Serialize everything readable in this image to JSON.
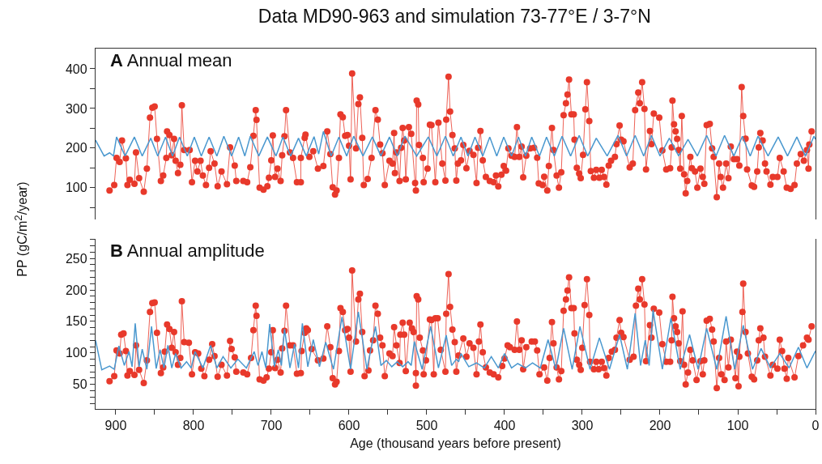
{
  "chart_data": [
    {
      "type": "line",
      "title": "Data MD90-963 and simulation 73-77°E / 3-7°N",
      "ylabel": "PP (gC/m$^{2}$/year)",
      "annotations": [
        "A Annual mean"
      ],
      "xlim": [
        926,
        0
      ],
      "ylim": [
        20,
        451
      ],
      "yticks": [
        {
          "value": 50,
          "label": null
        },
        100,
        {
          "value": 150,
          "label": null
        },
        200,
        {
          "value": 250,
          "label": null
        },
        300,
        {
          "value": 350,
          "label": null
        },
        400
      ],
      "tick_labels": "y",
      "series": [
        {
          "color": "#e8392b",
          "marker": "circle",
          "x": [
            908,
            902,
            899,
            895,
            892,
            887,
            885,
            882,
            876,
            874,
            870,
            864,
            860,
            856,
            853,
            850,
            847,
            842,
            839,
            835,
            834,
            831,
            828,
            825,
            823,
            820,
            817,
            815,
            812,
            805,
            802,
            798,
            795,
            791,
            788,
            784,
            780,
            778,
            773,
            769,
            764,
            757,
            753,
            747,
            745,
            736,
            731,
            727,
            723,
            720,
            719,
            715,
            710,
            705,
            703,
            700,
            698,
            695,
            692,
            688,
            686,
            683,
            681,
            676,
            672,
            667,
            662,
            662,
            657,
            656,
            651,
            646,
            640,
            633,
            628,
            624,
            621,
            618,
            616,
            613,
            611,
            608,
            605,
            602,
            600,
            598,
            596,
            591,
            588,
            586,
            583,
            581,
            576,
            571,
            566,
            563,
            560,
            557,
            554,
            548,
            544,
            542,
            541,
            539,
            535,
            533,
            531,
            529,
            527,
            523,
            520,
            515,
            514,
            513,
            511,
            510,
            505,
            504,
            499,
            496,
            494,
            489,
            485,
            480,
            476,
            475,
            472,
            470,
            467,
            464,
            462,
            460,
            456,
            453,
            449,
            445,
            440,
            436,
            434,
            431,
            428,
            424,
            419,
            414,
            411,
            408,
            404,
            401,
            398,
            395,
            391,
            387,
            384,
            381,
            378,
            376,
            372,
            367,
            362,
            358,
            356,
            351,
            349,
            345,
            343,
            339,
            337,
            333,
            330,
            327,
            324,
            321,
            319,
            317,
            314,
            311,
            310,
            307,
            304,
            302,
            299,
            296,
            294,
            291,
            289,
            285,
            282,
            278,
            275,
            272,
            269,
            266,
            263,
            258,
            256,
            252,
            250,
            247,
            239,
            235,
            232,
            228,
            226,
            223,
            220,
            218,
            213,
            211,
            208,
            201,
            197,
            192,
            187,
            185,
            184,
            182,
            180,
            178,
            176,
            174,
            172,
            169,
            167,
            165,
            161,
            159,
            155,
            152,
            148,
            145,
            143,
            140,
            136,
            133,
            131,
            127,
            124,
            122,
            119,
            115,
            112,
            109,
            105,
            101,
            98,
            95,
            93,
            90,
            88,
            82,
            79,
            75,
            73,
            71,
            68,
            65,
            63,
            58,
            55,
            49,
            46,
            41,
            37,
            32,
            27,
            24,
            19,
            15,
            11,
            9,
            8,
            5
          ],
          "values": [
            93,
            107,
            175,
            165,
            219,
            174,
            107,
            120,
            110,
            189,
            124,
            90,
            148,
            277,
            302,
            305,
            223,
            117,
            131,
            175,
            242,
            233,
            182,
            223,
            168,
            137,
            158,
            308,
            195,
            195,
            114,
            168,
            141,
            168,
            131,
            107,
            150,
            192,
            161,
            104,
            141,
            109,
            202,
            156,
            117,
            117,
            114,
            152,
            231,
            296,
            271,
            100,
            95,
            104,
            125,
            169,
            232,
            127,
            148,
            117,
            182,
            230,
            296,
            189,
            175,
            114,
            114,
            175,
            226,
            234,
            178,
            192,
            148,
            155,
            242,
            185,
            101,
            83,
            93,
            175,
            285,
            278,
            231,
            233,
            206,
            121,
            388,
            199,
            311,
            328,
            226,
            107,
            122,
            175,
            296,
            272,
            209,
            187,
            107,
            168,
            161,
            238,
            137,
            189,
            117,
            201,
            251,
            219,
            121,
            253,
            236,
            112,
            93,
            320,
            310,
            208,
            175,
            114,
            148,
            259,
            258,
            114,
            264,
            161,
            118,
            272,
            380,
            292,
            233,
            199,
            118,
            161,
            169,
            208,
            149,
            193,
            183,
            112,
            201,
            243,
            169,
            127,
            117,
            114,
            131,
            103,
            133,
            155,
            143,
            199,
            181,
            178,
            253,
            178,
            204,
            126,
            181,
            199,
            201,
            176,
            111,
            107,
            128,
            93,
            155,
            251,
            195,
            131,
            100,
            139,
            283,
            313,
            335,
            373,
            285,
            285,
            221,
            150,
            136,
            124,
            183,
            298,
            366,
            268,
            142,
            125,
            145,
            125,
            145,
            127,
            108,
            156,
            168,
            178,
            210,
            257,
            221,
            217,
            151,
            161,
            296,
            340,
            313,
            366,
            299,
            146,
            243,
            210,
            287,
            277,
            194,
            146,
            149,
            202,
            320,
            260,
            242,
            223,
            195,
            148,
            281,
            134,
            86,
            117,
            178,
            149,
            141,
            100,
            148,
            127,
            110,
            258,
            261,
            199,
            178,
            76,
            161,
            127,
            100,
            161,
            124,
            204,
            172,
            172,
            156,
            354,
            281,
            224,
            146,
            106,
            102,
            141,
            202,
            238,
            219,
            161,
            141,
            108,
            127,
            127,
            175,
            141,
            100,
            97,
            107,
            161,
            185,
            168,
            195,
            148,
            209,
            242
          ]
        },
        {
          "color": "#4a98cf",
          "marker": "none",
          "x": [
            926,
            915,
            908,
            903,
            899,
            888,
            876,
            866,
            855,
            846,
            836,
            827,
            818,
            808,
            799,
            790,
            780,
            770,
            761,
            751,
            742,
            734,
            727,
            716,
            705,
            694,
            685,
            675,
            665,
            655,
            645,
            639,
            633,
            623,
            613,
            603,
            594,
            582,
            570,
            559,
            548,
            538,
            528,
            513,
            498,
            487,
            476,
            466,
            456,
            447,
            438,
            428,
            419,
            410,
            401,
            391,
            382,
            373,
            365,
            355,
            346,
            336,
            326,
            315,
            304,
            293,
            282,
            268,
            254,
            243,
            232,
            221,
            211,
            200,
            188,
            176,
            164,
            152,
            140,
            128,
            117,
            105,
            94,
            84,
            74,
            61,
            48,
            36,
            24,
            13,
            2,
            0
          ],
          "values": [
            220,
            180,
            188,
            180,
            228,
            180,
            228,
            180,
            225,
            180,
            228,
            180,
            228,
            180,
            228,
            180,
            228,
            180,
            230,
            180,
            228,
            180,
            230,
            180,
            228,
            180,
            228,
            180,
            225,
            180,
            229,
            185,
            242,
            180,
            228,
            180,
            230,
            180,
            228,
            180,
            228,
            180,
            230,
            180,
            228,
            180,
            230,
            180,
            228,
            180,
            228,
            180,
            228,
            180,
            228,
            180,
            228,
            180,
            228,
            180,
            228,
            180,
            230,
            180,
            232,
            180,
            225,
            180,
            232,
            180,
            232,
            180,
            232,
            180,
            225,
            180,
            222,
            180,
            232,
            180,
            232,
            180,
            230,
            180,
            230,
            180,
            228,
            180,
            228,
            180,
            230,
            222
          ]
        }
      ]
    },
    {
      "type": "line",
      "xlabel": "Age (thousand years before present)",
      "annotations": [
        "B Annual amplitude"
      ],
      "xlim": [
        926,
        0
      ],
      "xticks": [
        900,
        {
          "value": 850,
          "label": null
        },
        800,
        {
          "value": 750,
          "label": null
        },
        700,
        {
          "value": 650,
          "label": null
        },
        600,
        {
          "value": 550,
          "label": null
        },
        500,
        {
          "value": 450,
          "label": null
        },
        400,
        {
          "value": 350,
          "label": null
        },
        300,
        {
          "value": 250,
          "label": null
        },
        200,
        {
          "value": 150,
          "label": null
        },
        100,
        {
          "value": 50,
          "label": null
        },
        0
      ],
      "ylim": [
        11,
        281
      ],
      "yticks": [
        {
          "value": 20,
          "label": null
        },
        {
          "value": 30,
          "label": null
        },
        {
          "value": 40,
          "label": null
        },
        50,
        {
          "value": 60,
          "label": null
        },
        {
          "value": 70,
          "label": null
        },
        {
          "value": 80,
          "label": null
        },
        {
          "value": 90,
          "label": null
        },
        100,
        {
          "value": 110,
          "label": null
        },
        {
          "value": 120,
          "label": null
        },
        {
          "value": 130,
          "label": null
        },
        {
          "value": 140,
          "label": null
        },
        150,
        {
          "value": 160,
          "label": null
        },
        {
          "value": 170,
          "label": null
        },
        {
          "value": 180,
          "label": null
        },
        {
          "value": 190,
          "label": null
        },
        200,
        {
          "value": 210,
          "label": null
        },
        {
          "value": 220,
          "label": null
        },
        {
          "value": 230,
          "label": null
        },
        {
          "value": 240,
          "label": null
        },
        250,
        {
          "value": 260,
          "label": null
        },
        {
          "value": 270,
          "label": null
        },
        {
          "value": 280,
          "label": null
        }
      ],
      "series": [
        {
          "color": "#e8392b",
          "marker": "circle",
          "x": [
            908,
            902,
            899,
            895,
            893,
            890,
            887,
            885,
            882,
            876,
            874,
            870,
            864,
            860,
            856,
            853,
            850,
            847,
            842,
            839,
            837,
            834,
            831,
            828,
            825,
            823,
            820,
            817,
            815,
            812,
            806,
            802,
            798,
            794,
            790,
            786,
            780,
            776,
            773,
            769,
            764,
            757,
            753,
            751,
            747,
            745,
            736,
            731,
            726,
            723,
            720,
            719,
            715,
            710,
            706,
            703,
            700,
            698,
            695,
            692,
            688,
            686,
            683,
            681,
            676,
            672,
            667,
            662,
            661,
            657,
            655,
            653,
            648,
            640,
            633,
            628,
            624,
            621,
            618,
            616,
            613,
            611,
            608,
            605,
            602,
            600,
            598,
            596,
            591,
            588,
            586,
            583,
            580,
            575,
            573,
            569,
            566,
            563,
            560,
            557,
            554,
            548,
            544,
            542,
            539,
            535,
            534,
            531,
            529,
            527,
            522,
            519,
            517,
            514,
            514,
            513,
            511,
            509,
            505,
            504,
            501,
            496,
            494,
            491,
            489,
            486,
            482,
            476,
            475,
            472,
            470,
            467,
            464,
            462,
            459,
            453,
            449,
            445,
            440,
            436,
            433,
            431,
            428,
            424,
            419,
            414,
            408,
            403,
            400,
            396,
            393,
            387,
            384,
            381,
            378,
            376,
            372,
            365,
            361,
            358,
            355,
            349,
            345,
            342,
            339,
            337,
            333,
            330,
            327,
            324,
            321,
            319,
            317,
            314,
            311,
            310,
            307,
            304,
            302,
            300,
            297,
            294,
            291,
            290,
            285,
            282,
            279,
            275,
            272,
            269,
            266,
            262,
            258,
            256,
            252,
            250,
            247,
            239,
            234,
            231,
            228,
            226,
            223,
            220,
            218,
            213,
            211,
            208,
            201,
            197,
            192,
            187,
            185,
            184,
            182,
            180,
            178,
            176,
            174,
            171,
            169,
            167,
            164,
            161,
            158,
            153,
            148,
            145,
            143,
            140,
            136,
            133,
            131,
            127,
            124,
            121,
            117,
            115,
            112,
            109,
            103,
            101,
            99,
            98,
            94,
            93,
            90,
            87,
            82,
            79,
            75,
            73,
            71,
            67,
            65,
            58,
            55,
            49,
            46,
            43,
            40,
            37,
            35,
            27,
            22,
            16,
            11,
            9,
            5
          ],
          "values": [
            55,
            63,
            104,
            99,
            129,
            131,
            103,
            64,
            71,
            65,
            112,
            73,
            52,
            88,
            165,
            179,
            180,
            132,
            68,
            77,
            102,
            145,
            138,
            108,
            133,
            101,
            81,
            92,
            182,
            117,
            116,
            66,
            101,
            99,
            75,
            63,
            89,
            114,
            95,
            62,
            81,
            64,
            119,
            106,
            93,
            70,
            69,
            66,
            92,
            136,
            175,
            159,
            58,
            56,
            61,
            75,
            101,
            136,
            76,
            89,
            69,
            107,
            135,
            175,
            112,
            112,
            67,
            68,
            103,
            132,
            139,
            136,
            106,
            88,
            91,
            142,
            109,
            60,
            50,
            54,
            103,
            171,
            165,
            136,
            138,
            124,
            70,
            231,
            118,
            185,
            194,
            133,
            63,
            72,
            104,
            120,
            175,
            162,
            124,
            112,
            63,
            99,
            95,
            141,
            112,
            84,
            129,
            148,
            129,
            71,
            148,
            139,
            133,
            68,
            48,
            190,
            185,
            124,
            104,
            66,
            88,
            153,
            152,
            66,
            155,
            155,
            105,
            70,
            162,
            225,
            173,
            137,
            117,
            70,
            96,
            123,
            94,
            115,
            108,
            66,
            118,
            145,
            101,
            77,
            69,
            66,
            61,
            79,
            91,
            112,
            109,
            105,
            150,
            105,
            120,
            74,
            109,
            118,
            118,
            104,
            66,
            77,
            56,
            92,
            149,
            115,
            77,
            58,
            71,
            167,
            185,
            199,
            220,
            171,
            171,
            131,
            89,
            81,
            73,
            108,
            176,
            217,
            160,
            86,
            74,
            86,
            74,
            86,
            76,
            64,
            92,
            102,
            105,
            124,
            152,
            132,
            125,
            89,
            94,
            175,
            202,
            185,
            217,
            177,
            87,
            144,
            124,
            170,
            164,
            114,
            86,
            86,
            120,
            189,
            155,
            142,
            133,
            115,
            87,
            166,
            81,
            50,
            69,
            105,
            88,
            57,
            87,
            66,
            88,
            151,
            154,
            137,
            118,
            44,
            92,
            66,
            57,
            118,
            77,
            121,
            60,
            102,
            47,
            94,
            165,
            210,
            133,
            99,
            62,
            58,
            88,
            120,
            139,
            124,
            94,
            64,
            81,
            75,
            121,
            103,
            75,
            59,
            92,
            61,
            95,
            112,
            124,
            121,
            142
          ]
        },
        {
          "color": "#4a98cf",
          "marker": "none",
          "x": [
            926,
            918,
            908,
            902,
            896,
            889,
            883,
            879,
            875,
            870,
            866,
            860,
            854,
            848,
            843,
            838,
            833,
            828,
            823,
            816,
            809,
            803,
            798,
            788,
            778,
            770,
            762,
            752,
            743,
            732,
            722,
            717,
            712,
            707,
            702,
            696,
            691,
            687,
            683,
            676,
            670,
            665,
            660,
            653,
            646,
            638,
            630,
            620,
            609,
            598,
            588,
            577,
            566,
            559,
            552,
            545,
            538,
            531,
            524,
            520,
            516,
            506,
            495,
            485,
            475,
            468,
            462,
            459,
            456,
            446,
            436,
            426,
            417,
            408,
            400,
            391,
            383,
            373,
            364,
            354,
            344,
            334,
            324,
            313,
            303,
            290,
            278,
            265,
            252,
            242,
            232,
            225,
            219,
            214,
            209,
            197,
            186,
            174,
            162,
            151,
            140,
            127,
            115,
            104,
            93,
            81,
            70,
            58,
            46,
            34,
            22,
            11,
            0
          ],
          "values": [
            120,
            73,
            79,
            74,
            111,
            80,
            102,
            78,
            147,
            78,
            106,
            74,
            142,
            75,
            105,
            76,
            112,
            76,
            99,
            76,
            86,
            76,
            102,
            76,
            112,
            76,
            94,
            76,
            90,
            76,
            102,
            80,
            102,
            76,
            146,
            78,
            105,
            80,
            138,
            76,
            114,
            76,
            147,
            78,
            121,
            78,
            117,
            74,
            157,
            74,
            165,
            74,
            142,
            80,
            88,
            78,
            86,
            78,
            86,
            80,
            118,
            74,
            142,
            76,
            128,
            80,
            90,
            86,
            99,
            78,
            84,
            76,
            94,
            76,
            99,
            76,
            83,
            76,
            84,
            76,
            121,
            74,
            139,
            74,
            142,
            74,
            124,
            74,
            129,
            74,
            163,
            80,
            120,
            80,
            168,
            74,
            155,
            74,
            129,
            74,
            139,
            74,
            158,
            74,
            144,
            74,
            107,
            76,
            99,
            76,
            109,
            76,
            103
          ]
        }
      ]
    }
  ]
}
